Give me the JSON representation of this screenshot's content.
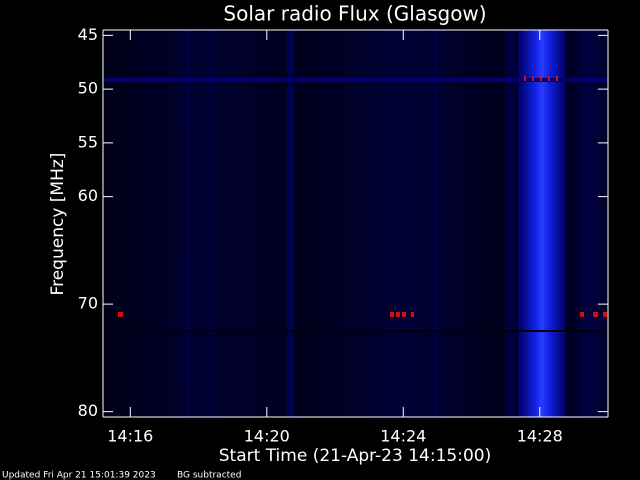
{
  "chart_data": {
    "type": "spectrogram",
    "title": "Solar radio Flux (Glasgow)",
    "x_label": "Start Time (21-Apr-23 14:15:00)",
    "y_label": "Frequency [MHz]",
    "xlim": [
      0.2,
      15
    ],
    "xticks": [
      {
        "value": 1,
        "label": "14:16"
      },
      {
        "value": 5,
        "label": "14:20"
      },
      {
        "value": 9,
        "label": "14:24"
      },
      {
        "value": 13,
        "label": "14:28"
      }
    ],
    "ylim": [
      44.5,
      80.5
    ],
    "y_inverted": true,
    "yticks": [
      45,
      50,
      55,
      60,
      70,
      80
    ],
    "footer_left": "Updated Fri Apr 21 15:01:39 2023",
    "footer_right": "BG subtracted"
  }
}
